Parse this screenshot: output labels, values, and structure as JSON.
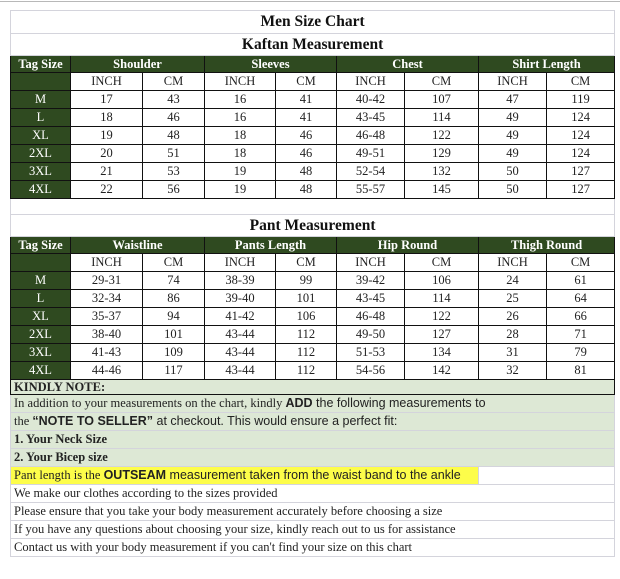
{
  "title": "Men Size Chart",
  "kaftan": {
    "title": "Kaftan Measurement",
    "tag_header": "Tag Size",
    "groups": [
      "Shoulder",
      "Sleeves",
      "Chest",
      "Shirt Length"
    ],
    "units": [
      "INCH",
      "CM",
      "INCH",
      "CM",
      "INCH",
      "CM",
      "INCH",
      "CM"
    ],
    "rows": [
      {
        "tag": "M",
        "values": [
          "17",
          "43",
          "16",
          "41",
          "40-42",
          "107",
          "47",
          "119"
        ]
      },
      {
        "tag": "L",
        "values": [
          "18",
          "46",
          "16",
          "41",
          "43-45",
          "114",
          "49",
          "124"
        ]
      },
      {
        "tag": "XL",
        "values": [
          "19",
          "48",
          "18",
          "46",
          "46-48",
          "122",
          "49",
          "124"
        ]
      },
      {
        "tag": "2XL",
        "values": [
          "20",
          "51",
          "18",
          "46",
          "49-51",
          "129",
          "49",
          "124"
        ]
      },
      {
        "tag": "3XL",
        "values": [
          "21",
          "53",
          "19",
          "48",
          "52-54",
          "132",
          "50",
          "127"
        ]
      },
      {
        "tag": "4XL",
        "values": [
          "22",
          "56",
          "19",
          "48",
          "55-57",
          "145",
          "50",
          "127"
        ]
      }
    ]
  },
  "pant": {
    "title": "Pant Measurement",
    "tag_header": "Tag Size",
    "groups": [
      "Waistline",
      "Pants Length",
      "Hip Round",
      "Thigh Round"
    ],
    "units": [
      "INCH",
      "CM",
      "INCH",
      "CM",
      "INCH",
      "CM",
      "INCH",
      "CM"
    ],
    "rows": [
      {
        "tag": "M",
        "values": [
          "29-31",
          "74",
          "38-39",
          "99",
          "39-42",
          "106",
          "24",
          "61"
        ]
      },
      {
        "tag": "L",
        "values": [
          "32-34",
          "86",
          "39-40",
          "101",
          "43-45",
          "114",
          "25",
          "64"
        ]
      },
      {
        "tag": "XL",
        "values": [
          "35-37",
          "94",
          "41-42",
          "106",
          "46-48",
          "122",
          "26",
          "66"
        ]
      },
      {
        "tag": "2XL",
        "values": [
          "38-40",
          "101",
          "43-44",
          "112",
          "49-50",
          "127",
          "28",
          "71"
        ]
      },
      {
        "tag": "3XL",
        "values": [
          "41-43",
          "109",
          "43-44",
          "112",
          "51-53",
          "134",
          "31",
          "79"
        ]
      },
      {
        "tag": "4XL",
        "values": [
          "44-46",
          "117",
          "43-44",
          "112",
          "54-56",
          "142",
          "32",
          "81"
        ]
      }
    ]
  },
  "notes": {
    "heading": "KINDLY NOTE:",
    "line1_pre": "In addition to your measurements on the chart, kindly ",
    "line1_bold": "ADD",
    "line1_post": " the following measurements to",
    "line2_pre": "the ",
    "line2_bold": "“NOTE TO SELLER”",
    "line2_post": " at checkout. This would ensure a perfect fit:",
    "item1": "1. Your Neck Size",
    "item2": "2. Your Bicep size",
    "outseam_pre": "Pant length is the ",
    "outseam_bold": "OUTSEAM",
    "outseam_post": " measurement taken from the waist band to the ankle",
    "lines": [
      "We make our clothes according to the sizes provided",
      "Please ensure that you take your body measurement accurately before choosing a size",
      "If you have any questions about choosing your size, kindly reach out to us for assistance",
      "Contact us with your body measurement if you can't find your size on this chart"
    ]
  },
  "colors": {
    "header_green": "#2f4a20",
    "note_green": "#dde8d5",
    "highlight_yellow": "#fdfd4a"
  }
}
